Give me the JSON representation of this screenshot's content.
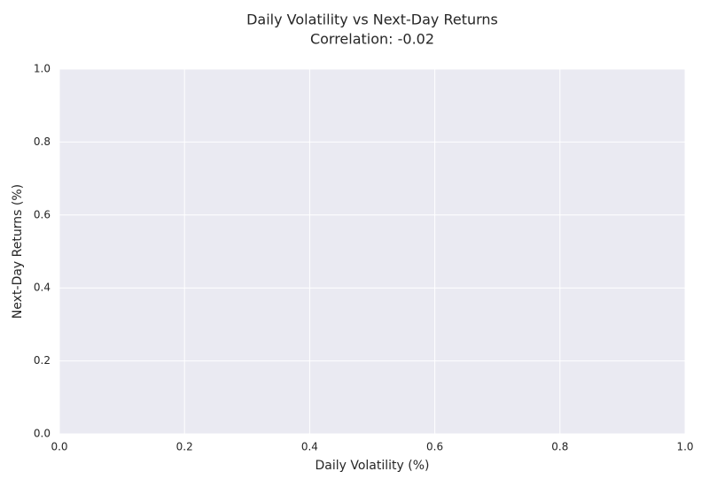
{
  "chart_data": {
    "type": "scatter",
    "title": "Daily Volatility vs Next-Day Returns",
    "subtitle": "Correlation: -0.02",
    "x_label": "Daily Volatility (%)",
    "y_label": "Next-Day Returns (%)",
    "xlim": [
      0,
      1
    ],
    "ylim": [
      0,
      1
    ],
    "xticks": [
      {
        "value": 0,
        "label": "0.0"
      },
      0.2,
      0.4,
      0.6,
      0.8,
      {
        "value": 1,
        "label": "1.0"
      }
    ],
    "yticks": [
      {
        "value": 0,
        "label": "0.0"
      },
      0.2,
      0.4,
      0.6,
      0.8,
      {
        "value": 1,
        "label": "1.0"
      }
    ],
    "grid": true
  }
}
